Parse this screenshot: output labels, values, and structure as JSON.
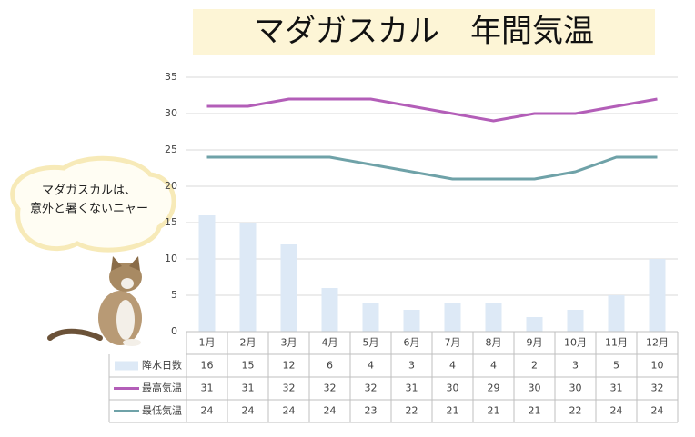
{
  "chart_data": {
    "type": "bar-line",
    "title": "マダガスカル　年間気温",
    "annotations": [
      "マダガスカルは、",
      "意外と暑くないニャー"
    ],
    "categories": [
      "1月",
      "2月",
      "3月",
      "4月",
      "5月",
      "6月",
      "7月",
      "8月",
      "9月",
      "10月",
      "11月",
      "12月"
    ],
    "series": [
      {
        "name": "降水日数",
        "type": "bar",
        "color": "#dde9f6",
        "values": [
          16,
          15,
          12,
          6,
          4,
          3,
          4,
          4,
          2,
          3,
          5,
          10
        ]
      },
      {
        "name": "最高気温",
        "type": "line",
        "color": "#b35eb8",
        "values": [
          31,
          31,
          32,
          32,
          32,
          31,
          30,
          29,
          30,
          30,
          31,
          32
        ]
      },
      {
        "name": "最低気温",
        "type": "line",
        "color": "#6fa2a8",
        "values": [
          24,
          24,
          24,
          24,
          23,
          22,
          21,
          21,
          21,
          22,
          24,
          24
        ]
      }
    ],
    "ylim": [
      0,
      35
    ],
    "yticks": [
      0,
      5,
      10,
      15,
      20,
      25,
      30,
      35
    ],
    "grid": true,
    "data_table": true
  }
}
